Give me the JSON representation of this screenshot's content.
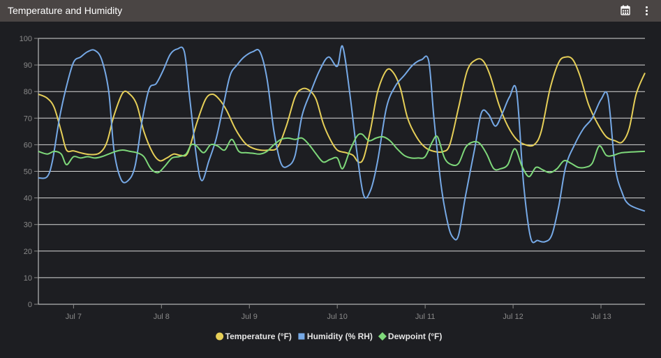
{
  "header": {
    "title": "Temperature and Humidity"
  },
  "icons": {
    "calendar": "calendar-icon",
    "menu": "more-vertical-icon"
  },
  "chart_data": {
    "type": "line",
    "xlim": [
      6.6,
      13.5
    ],
    "ylim": [
      0,
      100
    ],
    "y_ticks": [
      0,
      10,
      20,
      30,
      40,
      50,
      60,
      70,
      80,
      90,
      100
    ],
    "x_ticks": [
      {
        "value": 7,
        "label": "Jul 7"
      },
      {
        "value": 8,
        "label": "Jul 8"
      },
      {
        "value": 9,
        "label": "Jul 9"
      },
      {
        "value": 10,
        "label": "Jul 10"
      },
      {
        "value": 11,
        "label": "Jul 11"
      },
      {
        "value": 12,
        "label": "Jul 12"
      },
      {
        "value": 13,
        "label": "Jul 13"
      }
    ],
    "grid": true,
    "legend_position": "bottom-center",
    "series": [
      {
        "name": "Temperature (°F)",
        "color": "#e6cf58",
        "marker": "circle",
        "points": [
          [
            6.6,
            79
          ],
          [
            6.7,
            77.5
          ],
          [
            6.78,
            74
          ],
          [
            6.86,
            65
          ],
          [
            6.92,
            58
          ],
          [
            7.0,
            57.7
          ],
          [
            7.1,
            56.8
          ],
          [
            7.2,
            56.3
          ],
          [
            7.3,
            57
          ],
          [
            7.38,
            61
          ],
          [
            7.46,
            71
          ],
          [
            7.56,
            79.5
          ],
          [
            7.64,
            79
          ],
          [
            7.72,
            75
          ],
          [
            7.8,
            65
          ],
          [
            7.9,
            57
          ],
          [
            7.98,
            54
          ],
          [
            8.06,
            55
          ],
          [
            8.14,
            56.5
          ],
          [
            8.22,
            56
          ],
          [
            8.3,
            57
          ],
          [
            8.4,
            68
          ],
          [
            8.5,
            77
          ],
          [
            8.58,
            79
          ],
          [
            8.66,
            77
          ],
          [
            8.74,
            73
          ],
          [
            8.84,
            66
          ],
          [
            8.94,
            61
          ],
          [
            9.02,
            59
          ],
          [
            9.12,
            58
          ],
          [
            9.22,
            58
          ],
          [
            9.32,
            59
          ],
          [
            9.42,
            67
          ],
          [
            9.52,
            78
          ],
          [
            9.6,
            81
          ],
          [
            9.68,
            80.5
          ],
          [
            9.76,
            77
          ],
          [
            9.84,
            68
          ],
          [
            9.92,
            62
          ],
          [
            10.0,
            58
          ],
          [
            10.1,
            57
          ],
          [
            10.18,
            56
          ],
          [
            10.24,
            53.5
          ],
          [
            10.3,
            55
          ],
          [
            10.38,
            66
          ],
          [
            10.46,
            80
          ],
          [
            10.56,
            88
          ],
          [
            10.64,
            87
          ],
          [
            10.72,
            81
          ],
          [
            10.8,
            70
          ],
          [
            10.9,
            63
          ],
          [
            11.0,
            59
          ],
          [
            11.1,
            57.5
          ],
          [
            11.2,
            57.4
          ],
          [
            11.28,
            60
          ],
          [
            11.38,
            74
          ],
          [
            11.48,
            88
          ],
          [
            11.58,
            92
          ],
          [
            11.66,
            91.5
          ],
          [
            11.74,
            86
          ],
          [
            11.84,
            75
          ],
          [
            11.94,
            67
          ],
          [
            12.04,
            62
          ],
          [
            12.14,
            60
          ],
          [
            12.24,
            60
          ],
          [
            12.32,
            65
          ],
          [
            12.42,
            81
          ],
          [
            12.52,
            91
          ],
          [
            12.6,
            93
          ],
          [
            12.68,
            92
          ],
          [
            12.76,
            86
          ],
          [
            12.86,
            75
          ],
          [
            12.96,
            68
          ],
          [
            13.06,
            63
          ],
          [
            13.16,
            61.5
          ],
          [
            13.24,
            61
          ],
          [
            13.32,
            66
          ],
          [
            13.4,
            79
          ],
          [
            13.5,
            87
          ]
        ]
      },
      {
        "name": "Humidity (% RH)",
        "color": "#76a9e6",
        "marker": "square",
        "points": [
          [
            6.6,
            47.5
          ],
          [
            6.7,
            48
          ],
          [
            6.76,
            54
          ],
          [
            6.84,
            70
          ],
          [
            6.92,
            82
          ],
          [
            7.0,
            91
          ],
          [
            7.08,
            93
          ],
          [
            7.16,
            95
          ],
          [
            7.24,
            95.5
          ],
          [
            7.32,
            92
          ],
          [
            7.4,
            80
          ],
          [
            7.46,
            58
          ],
          [
            7.54,
            47
          ],
          [
            7.62,
            46.5
          ],
          [
            7.7,
            52
          ],
          [
            7.78,
            69
          ],
          [
            7.86,
            81
          ],
          [
            7.94,
            83
          ],
          [
            8.02,
            88
          ],
          [
            8.1,
            94
          ],
          [
            8.18,
            96
          ],
          [
            8.26,
            95
          ],
          [
            8.32,
            78
          ],
          [
            8.4,
            55
          ],
          [
            8.46,
            46.5
          ],
          [
            8.54,
            54
          ],
          [
            8.62,
            62
          ],
          [
            8.7,
            74
          ],
          [
            8.78,
            86
          ],
          [
            8.86,
            90
          ],
          [
            8.94,
            93
          ],
          [
            9.04,
            95
          ],
          [
            9.12,
            95
          ],
          [
            9.2,
            85
          ],
          [
            9.28,
            65
          ],
          [
            9.36,
            53
          ],
          [
            9.44,
            52
          ],
          [
            9.52,
            56
          ],
          [
            9.6,
            71
          ],
          [
            9.7,
            80
          ],
          [
            9.8,
            88
          ],
          [
            9.9,
            93
          ],
          [
            10.0,
            89.5
          ],
          [
            10.06,
            97
          ],
          [
            10.14,
            80
          ],
          [
            10.22,
            58
          ],
          [
            10.3,
            41
          ],
          [
            10.38,
            43
          ],
          [
            10.46,
            54
          ],
          [
            10.56,
            74
          ],
          [
            10.66,
            82
          ],
          [
            10.76,
            86
          ],
          [
            10.86,
            90
          ],
          [
            10.96,
            92
          ],
          [
            11.04,
            91.5
          ],
          [
            11.1,
            70
          ],
          [
            11.18,
            45
          ],
          [
            11.26,
            30
          ],
          [
            11.32,
            25
          ],
          [
            11.38,
            26
          ],
          [
            11.46,
            41
          ],
          [
            11.56,
            58
          ],
          [
            11.64,
            72
          ],
          [
            11.72,
            71.5
          ],
          [
            11.8,
            67
          ],
          [
            11.88,
            72
          ],
          [
            11.96,
            78
          ],
          [
            12.04,
            80
          ],
          [
            12.12,
            45
          ],
          [
            12.2,
            25
          ],
          [
            12.28,
            24
          ],
          [
            12.36,
            23.5
          ],
          [
            12.44,
            26
          ],
          [
            12.52,
            37
          ],
          [
            12.6,
            52
          ],
          [
            12.7,
            60
          ],
          [
            12.8,
            66
          ],
          [
            12.9,
            70
          ],
          [
            13.0,
            77
          ],
          [
            13.08,
            78
          ],
          [
            13.16,
            52
          ],
          [
            13.24,
            42
          ],
          [
            13.32,
            37.5
          ],
          [
            13.5,
            35
          ]
        ]
      },
      {
        "name": "Dewpoint (°F)",
        "color": "#7ed87a",
        "marker": "diamond",
        "points": [
          [
            6.6,
            57.5
          ],
          [
            6.7,
            56.5
          ],
          [
            6.78,
            57.5
          ],
          [
            6.86,
            56.5
          ],
          [
            6.92,
            52.5
          ],
          [
            7.0,
            55.5
          ],
          [
            7.08,
            55
          ],
          [
            7.16,
            55.5
          ],
          [
            7.24,
            55
          ],
          [
            7.32,
            55.5
          ],
          [
            7.4,
            56.5
          ],
          [
            7.48,
            57.5
          ],
          [
            7.56,
            58
          ],
          [
            7.64,
            57.5
          ],
          [
            7.72,
            57
          ],
          [
            7.8,
            55.5
          ],
          [
            7.88,
            51
          ],
          [
            7.96,
            49.5
          ],
          [
            8.04,
            52
          ],
          [
            8.12,
            55
          ],
          [
            8.2,
            55.5
          ],
          [
            8.28,
            56.5
          ],
          [
            8.34,
            60
          ],
          [
            8.4,
            59.5
          ],
          [
            8.48,
            57
          ],
          [
            8.56,
            60
          ],
          [
            8.64,
            59.5
          ],
          [
            8.72,
            58
          ],
          [
            8.8,
            62
          ],
          [
            8.88,
            57.5
          ],
          [
            8.96,
            57
          ],
          [
            9.04,
            56.8
          ],
          [
            9.12,
            56.5
          ],
          [
            9.2,
            57.5
          ],
          [
            9.28,
            60
          ],
          [
            9.36,
            62
          ],
          [
            9.44,
            62.5
          ],
          [
            9.52,
            62
          ],
          [
            9.6,
            62.5
          ],
          [
            9.68,
            60
          ],
          [
            9.76,
            56.5
          ],
          [
            9.84,
            53.5
          ],
          [
            9.92,
            54.5
          ],
          [
            10.0,
            55
          ],
          [
            10.06,
            51
          ],
          [
            10.14,
            57.5
          ],
          [
            10.22,
            63
          ],
          [
            10.28,
            64
          ],
          [
            10.36,
            61.5
          ],
          [
            10.44,
            62.5
          ],
          [
            10.52,
            63
          ],
          [
            10.6,
            61.5
          ],
          [
            10.68,
            58.5
          ],
          [
            10.76,
            56
          ],
          [
            10.84,
            55
          ],
          [
            10.92,
            55
          ],
          [
            11.0,
            55.5
          ],
          [
            11.08,
            61
          ],
          [
            11.14,
            63
          ],
          [
            11.22,
            55
          ],
          [
            11.3,
            52.5
          ],
          [
            11.38,
            53
          ],
          [
            11.46,
            59
          ],
          [
            11.54,
            61
          ],
          [
            11.62,
            60.5
          ],
          [
            11.7,
            56.5
          ],
          [
            11.78,
            51
          ],
          [
            11.86,
            51
          ],
          [
            11.94,
            52.5
          ],
          [
            12.02,
            58.5
          ],
          [
            12.1,
            52
          ],
          [
            12.18,
            48
          ],
          [
            12.26,
            51.5
          ],
          [
            12.34,
            50.5
          ],
          [
            12.42,
            49.5
          ],
          [
            12.5,
            51
          ],
          [
            12.58,
            54
          ],
          [
            12.66,
            53
          ],
          [
            12.74,
            51.5
          ],
          [
            12.82,
            51.5
          ],
          [
            12.9,
            53
          ],
          [
            12.98,
            59.5
          ],
          [
            13.06,
            56
          ],
          [
            13.14,
            56
          ],
          [
            13.24,
            57
          ],
          [
            13.5,
            57.5
          ]
        ]
      }
    ]
  }
}
